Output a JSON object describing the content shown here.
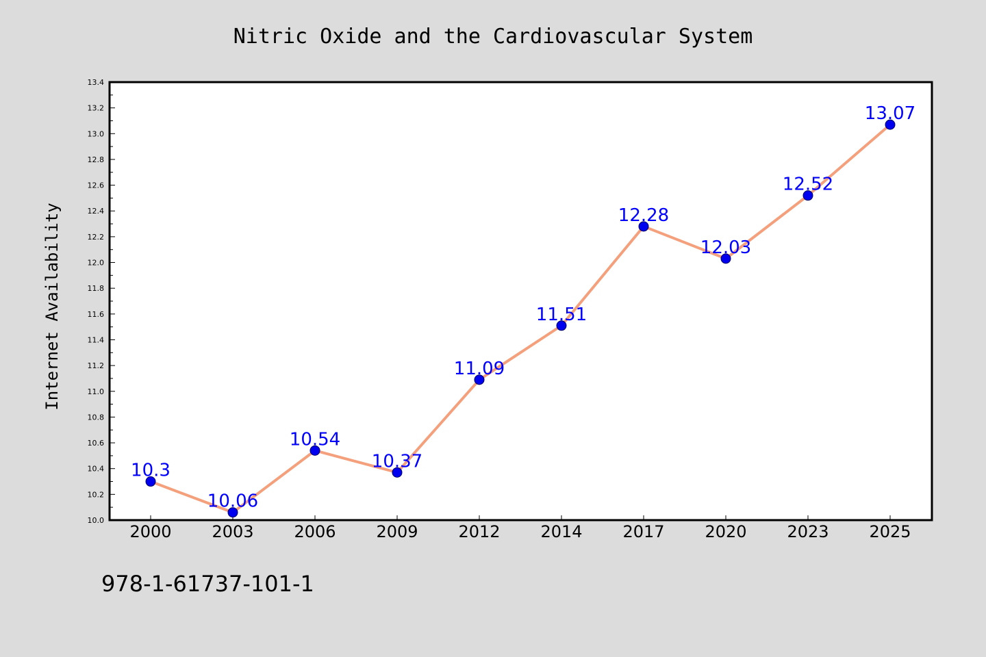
{
  "chart_data": {
    "type": "line",
    "title": "Nitric Oxide and the Cardiovascular System",
    "xlabel": "",
    "ylabel": "Internet Availability",
    "categories": [
      "2000",
      "2003",
      "2006",
      "2009",
      "2012",
      "2014",
      "2017",
      "2020",
      "2023",
      "2025"
    ],
    "series": [
      {
        "values": [
          10.3,
          10.06,
          10.54,
          10.37,
          11.09,
          11.51,
          12.28,
          12.03,
          12.52,
          13.07
        ],
        "data_labels": [
          "10.3",
          "10.06",
          "10.54",
          "10.37",
          "11.09",
          "11.51",
          "12.28",
          "12.03",
          "12.52",
          "13.07"
        ]
      }
    ],
    "ylim": [
      10.0,
      13.4
    ],
    "yticks": [
      "10.0",
      "10.2",
      "10.4",
      "10.6",
      "10.8",
      "11.0",
      "11.2",
      "11.4",
      "11.6",
      "11.8",
      "12.0",
      "12.2",
      "12.4",
      "12.6",
      "12.8",
      "13.0",
      "13.2",
      "13.4"
    ],
    "grid": false,
    "legend": "none",
    "colors": {
      "line": "#f4a07c",
      "marker": "#0000ee",
      "data_label": "#0000ff",
      "background": "#dcdcdc",
      "plot_background": "#ffffff"
    }
  },
  "footer": {
    "text": "978-1-61737-101-1"
  }
}
